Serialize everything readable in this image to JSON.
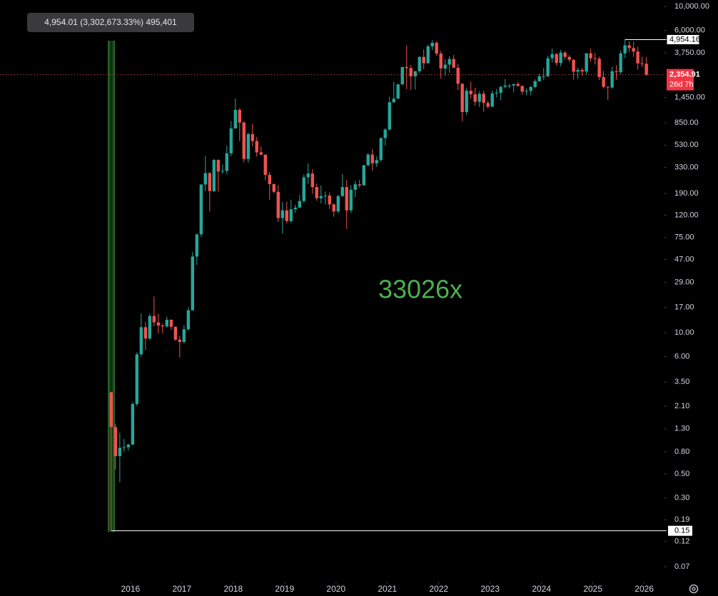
{
  "chart_data": {
    "type": "candlestick",
    "annotation": "33026x",
    "measure_label": "4,954.01 (3,302,673.33%) 495,401",
    "log_scale": true,
    "up_color": "#26a69a",
    "down_color": "#ef5350",
    "annotation_color": "#4caf50",
    "xlim": [
      2013.46,
      2026.38
    ],
    "xticks": [
      2016,
      2017,
      2018,
      2019,
      2020,
      2021,
      2022,
      2023,
      2024,
      2025,
      2026
    ],
    "ylim": [
      0.051,
      11460
    ],
    "yticks": [
      {
        "value": 10000,
        "label": "10,000.00"
      },
      {
        "value": 6000,
        "label": "6,000.00"
      },
      {
        "value": 3750,
        "label": "3,750.00"
      },
      {
        "value": 1450,
        "label": "1,450.00"
      },
      {
        "value": 850,
        "label": "850.00"
      },
      {
        "value": 530,
        "label": "530.00"
      },
      {
        "value": 330,
        "label": "330.00"
      },
      {
        "value": 190,
        "label": "190.00"
      },
      {
        "value": 120,
        "label": "120.00"
      },
      {
        "value": 75,
        "label": "75.00"
      },
      {
        "value": 47,
        "label": "47.00"
      },
      {
        "value": 29,
        "label": "29.00"
      },
      {
        "value": 17,
        "label": "17.00"
      },
      {
        "value": 10,
        "label": "10.00"
      },
      {
        "value": 6,
        "label": "6.00"
      },
      {
        "value": 3.5,
        "label": "3.50"
      },
      {
        "value": 2.1,
        "label": "2.10"
      },
      {
        "value": 1.3,
        "label": "1.30"
      },
      {
        "value": 0.8,
        "label": "0.80"
      },
      {
        "value": 0.5,
        "label": "0.50"
      },
      {
        "value": 0.3,
        "label": "0.30"
      },
      {
        "value": 0.19,
        "label": "0.19"
      },
      {
        "value": 0.12,
        "label": "0.12"
      },
      {
        "value": 0.07,
        "label": "0.07"
      }
    ],
    "high_marker": {
      "value": 4954.16,
      "label": "4,954.16"
    },
    "low_marker": {
      "value": 0.15,
      "label": "0.15"
    },
    "last_price": {
      "value": 2354.91,
      "label": "2,354.91"
    },
    "countdown": "26d 7h",
    "x": [
      2015.625,
      2015.708,
      2015.792,
      2015.875,
      2015.958,
      2016.042,
      2016.125,
      2016.208,
      2016.292,
      2016.375,
      2016.458,
      2016.542,
      2016.625,
      2016.708,
      2016.792,
      2016.875,
      2016.958,
      2017.042,
      2017.125,
      2017.208,
      2017.292,
      2017.375,
      2017.458,
      2017.542,
      2017.625,
      2017.708,
      2017.792,
      2017.875,
      2017.958,
      2018.042,
      2018.125,
      2018.208,
      2018.292,
      2018.375,
      2018.458,
      2018.542,
      2018.625,
      2018.708,
      2018.792,
      2018.875,
      2018.958,
      2019.042,
      2019.125,
      2019.208,
      2019.292,
      2019.375,
      2019.458,
      2019.542,
      2019.625,
      2019.708,
      2019.792,
      2019.875,
      2019.958,
      2020.042,
      2020.125,
      2020.208,
      2020.292,
      2020.375,
      2020.458,
      2020.542,
      2020.625,
      2020.708,
      2020.792,
      2020.875,
      2020.958,
      2021.042,
      2021.125,
      2021.208,
      2021.292,
      2021.375,
      2021.458,
      2021.542,
      2021.625,
      2021.708,
      2021.792,
      2021.875,
      2021.958,
      2022.042,
      2022.125,
      2022.208,
      2022.292,
      2022.375,
      2022.458,
      2022.542,
      2022.625,
      2022.708,
      2022.792,
      2022.875,
      2022.958,
      2023.042,
      2023.125,
      2023.208,
      2023.292,
      2023.375,
      2023.458,
      2023.542,
      2023.625,
      2023.708,
      2023.792,
      2023.875,
      2023.958,
      2024.042,
      2024.125,
      2024.208,
      2024.292,
      2024.375,
      2024.458,
      2024.542,
      2024.625,
      2024.708,
      2024.792,
      2024.875,
      2024.958,
      2025.042,
      2025.125,
      2025.208,
      2025.292,
      2025.375,
      2025.458,
      2025.542,
      2025.625,
      2025.708,
      2025.792,
      2025.875,
      2025.958,
      2026.042
    ],
    "open": [
      2.83,
      1.35,
      0.73,
      0.87,
      0.88,
      0.93,
      2.2,
      6.3,
      11.2,
      8.8,
      14.2,
      12.4,
      11.6,
      11.4,
      13.1,
      11.3,
      8.6,
      8.2,
      10.7,
      16,
      50,
      80,
      230,
      293,
      200,
      387,
      303,
      307,
      445,
      755,
      1118,
      855,
      395,
      670,
      578,
      455,
      433,
      282,
      232,
      197,
      113,
      133,
      106,
      136,
      141,
      162,
      268,
      290,
      218,
      172,
      180,
      182,
      151,
      130,
      180,
      218,
      133,
      206,
      231,
      226,
      346,
      434,
      360,
      386,
      615,
      737,
      1314,
      1416,
      1918,
      2773,
      2707,
      2274,
      2536,
      3433,
      3001,
      4288,
      4631,
      3682,
      2688,
      2919,
      3282,
      2730,
      1942,
      1067,
      1678,
      1554,
      1328,
      1572,
      1295,
      1196,
      1585,
      1605,
      1822,
      1870,
      1874,
      1934,
      1857,
      1645,
      1671,
      1815,
      2052,
      2282,
      2283,
      3340,
      3647,
      3015,
      3763,
      3433,
      3232,
      2513,
      2602,
      2518,
      3706,
      3332,
      3300,
      2237,
      1822,
      1795,
      2530,
      2486,
      3698,
      4391,
      4145,
      3847,
      2991,
      2968
    ],
    "high": [
      2.83,
      1.45,
      1.2,
      1.05,
      0.95,
      2.3,
      6.6,
      15,
      12.5,
      14.9,
      21.5,
      14.9,
      12.1,
      14,
      13.2,
      11.4,
      9.3,
      11.7,
      17,
      55,
      81,
      232,
      420,
      300,
      397,
      392,
      350,
      523,
      881,
      1420,
      1160,
      880,
      690,
      835,
      628,
      515,
      434,
      300,
      235,
      228,
      159,
      160,
      167,
      150,
      185,
      285,
      360,
      318,
      236,
      225,
      198,
      194,
      154,
      185,
      288,
      253,
      227,
      249,
      254,
      348,
      446,
      489,
      418,
      622,
      760,
      1476,
      2040,
      1943,
      2797,
      4372,
      2890,
      2551,
      3470,
      4027,
      4460,
      4891,
      4778,
      3900,
      3282,
      3480,
      3580,
      2966,
      1970,
      1785,
      2030,
      1790,
      1664,
      1678,
      1352,
      1680,
      1743,
      1858,
      2142,
      1927,
      1930,
      2030,
      1872,
      1753,
      1864,
      2130,
      2408,
      2717,
      3522,
      4093,
      3730,
      3977,
      3887,
      3560,
      3265,
      2730,
      2720,
      3680,
      4107,
      3744,
      3450,
      2550,
      1850,
      2790,
      2880,
      3940,
      4954.16,
      4770,
      4755,
      4250,
      3450,
      3400
    ],
    "low": [
      0.15,
      0.55,
      0.42,
      0.8,
      0.82,
      0.93,
      2.1,
      6,
      6.9,
      8.5,
      11.4,
      9.8,
      9.8,
      11.1,
      10.6,
      8.4,
      5.9,
      7.9,
      10.4,
      16,
      42,
      76,
      200,
      130,
      196,
      198,
      290,
      285,
      418,
      750,
      575,
      367,
      364,
      515,
      415,
      427,
      252,
      167,
      192,
      104,
      81,
      101,
      102,
      126,
      141,
      156,
      232,
      188,
      163,
      154,
      151,
      137,
      116,
      125,
      177,
      90,
      126,
      176,
      216,
      225,
      339,
      308,
      334,
      373,
      522,
      716,
      1300,
      1430,
      1906,
      1730,
      1700,
      1717,
      2450,
      2651,
      2970,
      3966,
      3518,
      2160,
      2300,
      2450,
      2722,
      1700,
      880,
      1006,
      1422,
      1220,
      1190,
      1073,
      1151,
      1190,
      1460,
      1370,
      1760,
      1760,
      1626,
      1820,
      1550,
      1530,
      1520,
      1770,
      2030,
      2100,
      2240,
      3050,
      2860,
      2812,
      3240,
      3080,
      2120,
      2150,
      2310,
      2357,
      3100,
      2922,
      2100,
      1760,
      1385,
      1750,
      2110,
      2373,
      3350,
      3820,
      3435,
      2623,
      2775,
      2300
    ],
    "close": [
      1.35,
      0.73,
      0.87,
      0.88,
      0.93,
      2.2,
      6.3,
      11.2,
      8.8,
      14.2,
      12.4,
      11.6,
      11.4,
      13.1,
      11.3,
      8.6,
      8.2,
      10.7,
      16,
      50,
      80,
      230,
      293,
      200,
      387,
      303,
      307,
      445,
      755,
      1118,
      855,
      395,
      670,
      578,
      455,
      433,
      282,
      232,
      197,
      113,
      133,
      106,
      136,
      141,
      162,
      268,
      290,
      218,
      172,
      180,
      182,
      151,
      130,
      180,
      218,
      133,
      206,
      231,
      226,
      346,
      434,
      360,
      386,
      615,
      737,
      1314,
      1416,
      1918,
      2773,
      2707,
      2274,
      2536,
      3433,
      3001,
      4288,
      4631,
      3682,
      2688,
      2919,
      3282,
      2730,
      1942,
      1067,
      1678,
      1554,
      1328,
      1572,
      1295,
      1196,
      1585,
      1605,
      1822,
      1870,
      1874,
      1934,
      1857,
      1645,
      1671,
      1815,
      2052,
      2282,
      2283,
      3340,
      3647,
      3015,
      3763,
      3433,
      3232,
      2513,
      2602,
      2518,
      3706,
      3332,
      3300,
      2237,
      1822,
      1795,
      2530,
      2486,
      3698,
      4391,
      4145,
      3847,
      2991,
      2968,
      2354.91
    ]
  }
}
